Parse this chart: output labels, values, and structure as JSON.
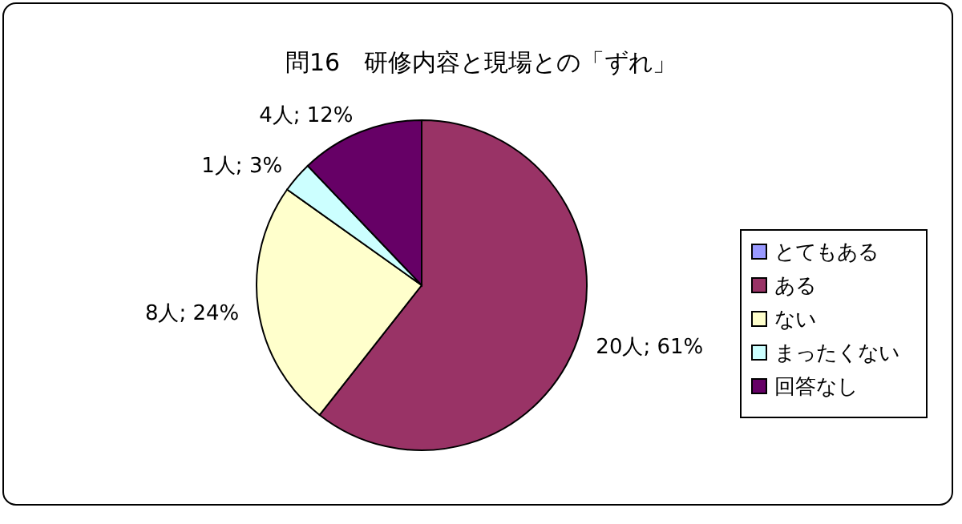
{
  "chart_data": {
    "type": "pie",
    "title": "問16　研修内容と現場との「ずれ」",
    "categories": [
      "とてもある",
      "ある",
      "ない",
      "まったくない",
      "回答なし"
    ],
    "values": [
      0,
      20,
      8,
      1,
      4
    ],
    "value_labels": [
      null,
      "20人; 61%",
      "8人; 24%",
      "1人; 3%",
      "4人; 12%"
    ],
    "colors": [
      "#9999ff",
      "#993366",
      "#ffffcc",
      "#ccffff",
      "#660066"
    ],
    "legend": "right"
  }
}
